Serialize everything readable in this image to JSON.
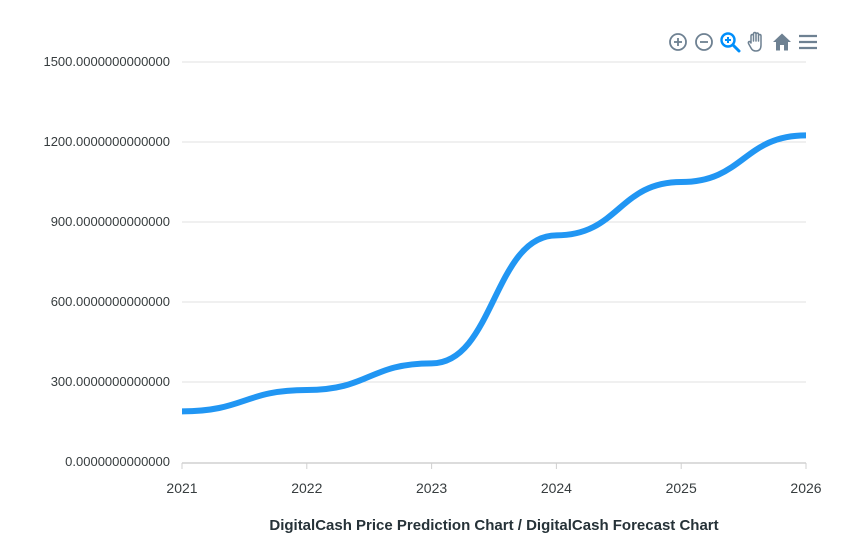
{
  "toolbar": {
    "buttons": [
      {
        "name": "zoom-in-icon"
      },
      {
        "name": "zoom-out-icon"
      },
      {
        "name": "selection-zoom-icon",
        "active": true
      },
      {
        "name": "pan-hand-icon"
      },
      {
        "name": "reset-home-icon"
      },
      {
        "name": "menu-icon"
      }
    ]
  },
  "colors": {
    "line": "#2196f3",
    "grid": "#e0e0e0",
    "axis_text": "#373d3f",
    "toolbar_icon": "#6e8192",
    "toolbar_active": "#008ffb"
  },
  "chart_data": {
    "type": "line",
    "title": "",
    "xlabel": "DigitalCash Price Prediction Chart / DigitalCash Forecast Chart",
    "ylabel": "",
    "x": [
      2021,
      2022,
      2023,
      2024,
      2025,
      2026
    ],
    "xticks": [
      "2021",
      "2022",
      "2023",
      "2024",
      "2025",
      "2026"
    ],
    "yticks": [
      "0.0000000000000",
      "300.0000000000000",
      "600.0000000000000",
      "900.0000000000000",
      "1200.0000000000000",
      "1500.0000000000000"
    ],
    "ylim": [
      0,
      1500
    ],
    "grid": true,
    "series": [
      {
        "values": [
          190,
          270,
          370,
          850,
          1050,
          1225
        ]
      }
    ]
  }
}
